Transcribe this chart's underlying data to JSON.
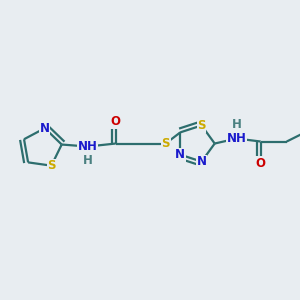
{
  "bg_color": "#e8edf1",
  "bond_color": "#2d6e6e",
  "N_color": "#1a1acc",
  "O_color": "#cc0000",
  "S_color": "#ccaa00",
  "H_color": "#4a8080",
  "font_size": 8.5,
  "line_width": 1.6,
  "figsize": [
    3.0,
    3.0
  ],
  "dpi": 100,
  "xlim": [
    0.0,
    3.0
  ],
  "ylim": [
    0.5,
    2.5
  ]
}
